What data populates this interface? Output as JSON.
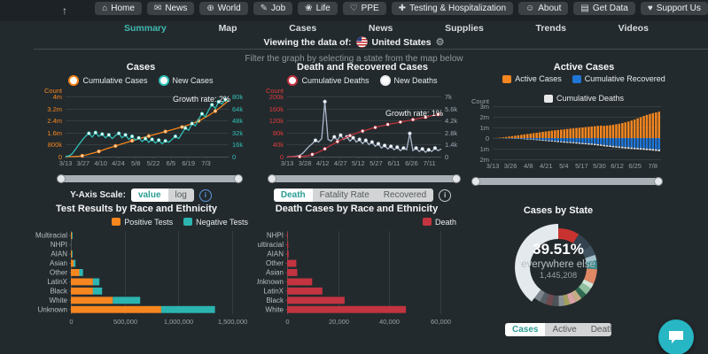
{
  "icons": {
    "scroll-top-icon": "↑",
    "gear-icon": "⚙",
    "home-icon": "⌂",
    "news-icon": "✉",
    "world-icon": "⊕",
    "job-icon": "✎",
    "life-icon": "❀",
    "ppe-icon": "♡",
    "testing-icon": "✚",
    "about-icon": "☺",
    "get-data-icon": "▤",
    "support-icon": "♥"
  },
  "header": {
    "nav_items": [
      {
        "icon": "home-icon",
        "label": "Home"
      },
      {
        "icon": "news-icon",
        "label": "News"
      },
      {
        "icon": "world-icon",
        "label": "World"
      },
      {
        "icon": "job-icon",
        "label": "Job"
      },
      {
        "icon": "life-icon",
        "label": "Life"
      },
      {
        "icon": "ppe-icon",
        "label": "PPE"
      },
      {
        "icon": "testing-icon",
        "label": "Testing & Hospitalization"
      },
      {
        "icon": "about-icon",
        "label": "About"
      },
      {
        "icon": "get-data-icon",
        "label": "Get Data"
      },
      {
        "icon": "support-icon",
        "label": "Support Us"
      }
    ],
    "subnav": {
      "items": [
        "Summary",
        "Map",
        "Cases",
        "News",
        "Supplies",
        "Trends",
        "Videos"
      ],
      "active": "Summary"
    },
    "viewing": {
      "prefix": "Viewing the data of:",
      "country": "United States"
    }
  },
  "filter_hint": "Filter the graph by selecting a state from the map below",
  "controls": {
    "y_axis_scale": {
      "label": "Y-Axis Scale:",
      "options": [
        "value",
        "log"
      ],
      "active": "value"
    },
    "death_tabs": {
      "options": [
        "Death",
        "Fatality Rate",
        "Recovered"
      ],
      "active": "Death"
    },
    "state_tabs": {
      "options": [
        "Cases",
        "Active",
        "Deaths"
      ],
      "active": "Cases"
    }
  },
  "colors": {
    "orange": "#f6861f",
    "teal": "#2fc0b8",
    "red_axis": "#e03b3b",
    "crimson": "#c0323e",
    "steel": "#aab8cc",
    "blue": "#2076d8",
    "white_series": "#e8e8e8",
    "bar_red": "#c23440",
    "grid": "#343d41",
    "axis_gray": "#9aa2a7",
    "accent": "#3fb8b0",
    "chat": "#27b6c4"
  },
  "chart_data": [
    {
      "type": "line",
      "title": "Cases",
      "legend": [
        {
          "label": "Cumulative Cases",
          "color": "#f6861f",
          "shape": "ring"
        },
        {
          "label": "New Cases",
          "color": "#2fc0b8",
          "shape": "ring"
        }
      ],
      "annotation": "Growth rate: 2%",
      "left_axis": {
        "title": "Count",
        "color": "#f6861f",
        "ticks": [
          "4m",
          "3.2m",
          "2.4m",
          "1.6m",
          "800k",
          "0"
        ],
        "max": 4000000
      },
      "right_axis": {
        "color": "#2fc0b8",
        "ticks": [
          "80k",
          "64k",
          "48k",
          "32k",
          "16k",
          "0"
        ],
        "max": 80000
      },
      "x_ticks": [
        "3/13",
        "3/27",
        "4/10",
        "4/24",
        "5/8",
        "5/22",
        "6/5",
        "6/19",
        "7/3"
      ],
      "x_layout": {
        "step": 14,
        "span": 130
      },
      "series": [
        {
          "name": "Cumulative Cases",
          "axis": "left",
          "color": "#f6861f",
          "dots": 5,
          "dot_fill": "#ffcf9e",
          "values": [
            0,
            1000,
            4000,
            10000,
            30000,
            60000,
            100000,
            160000,
            220000,
            280000,
            350000,
            420000,
            500000,
            570000,
            640000,
            710000,
            780000,
            850000,
            920000,
            990000,
            1060000,
            1120000,
            1190000,
            1250000,
            1310000,
            1370000,
            1430000,
            1490000,
            1550000,
            1610000,
            1670000,
            1730000,
            1790000,
            1850000,
            1910000,
            1970000,
            2040000,
            2110000,
            2190000,
            2280000,
            2380000,
            2490000,
            2610000,
            2740000,
            2880000,
            3030000,
            3190000,
            3360000,
            3540000,
            3730000
          ]
        },
        {
          "name": "New Cases",
          "axis": "right",
          "color": "#2fc0b8",
          "dots": "peaks",
          "dot_fill": "#ffffff",
          "values": [
            300,
            1000,
            4000,
            10000,
            16000,
            22000,
            27000,
            31000,
            26000,
            32000,
            27000,
            30000,
            25000,
            29000,
            24000,
            28000,
            31000,
            25000,
            29000,
            23000,
            27000,
            22000,
            25000,
            20000,
            24000,
            19000,
            23000,
            18000,
            22000,
            17000,
            21000,
            19000,
            23000,
            27000,
            24000,
            31000,
            38000,
            35000,
            44000,
            41000,
            50000,
            57000,
            53000,
            62000,
            69000,
            64000,
            73000,
            70000,
            76000,
            73000
          ]
        }
      ]
    },
    {
      "type": "line",
      "title": "Death and Recovered Cases",
      "legend": [
        {
          "label": "Cumulative Deaths",
          "color": "#c0323e",
          "shape": "ring"
        },
        {
          "label": "New Deaths",
          "color": "#e9edf0",
          "shape": "ring"
        }
      ],
      "annotation": "Growth rate: 1%",
      "left_axis": {
        "title": "Count",
        "color": "#e03b3b",
        "ticks": [
          "200k",
          "160k",
          "120k",
          "80k",
          "40k",
          "0"
        ],
        "max": 200000
      },
      "right_axis": {
        "color": "#9aa7b3",
        "ticks": [
          "7k",
          "5.6k",
          "4.2k",
          "2.8k",
          "1.4k",
          "0"
        ],
        "max": 7000
      },
      "x_ticks": [
        "3/13",
        "3/28",
        "4/12",
        "4/27",
        "5/12",
        "5/27",
        "6/11",
        "6/26",
        "7/11"
      ],
      "x_layout": {
        "step": 15,
        "span": 130
      },
      "series": [
        {
          "name": "New Deaths",
          "axis": "right",
          "color": "#aab8cc",
          "dots": "peaks",
          "dot_fill": "#ffffff",
          "values": [
            0,
            5,
            20,
            60,
            150,
            400,
            800,
            1200,
            1500,
            1900,
            1700,
            2100,
            6400,
            2000,
            1800,
            2300,
            1900,
            2500,
            2000,
            2300,
            1800,
            2200,
            1700,
            2000,
            1500,
            1900,
            1400,
            1700,
            1200,
            1500,
            1000,
            1300,
            900,
            1200,
            800,
            1100,
            700,
            1000,
            800,
            2700,
            700,
            1000,
            600,
            900,
            500,
            800,
            600,
            1000,
            700,
            900
          ]
        },
        {
          "name": "Cumulative Deaths",
          "axis": "left",
          "color": "#c0323e",
          "dots": 4,
          "dot_fill": "#ffffff",
          "values": [
            0,
            10,
            50,
            150,
            400,
            1000,
            2200,
            4500,
            7500,
            11000,
            15000,
            20000,
            26000,
            32000,
            38000,
            44000,
            50000,
            55000,
            60000,
            65000,
            70000,
            74000,
            78000,
            82000,
            85000,
            88000,
            91000,
            94000,
            97000,
            100000,
            102000,
            104000,
            107000,
            109000,
            111000,
            113000,
            115000,
            117000,
            119000,
            121000,
            123000,
            125000,
            127000,
            129000,
            131000,
            133000,
            136000,
            138000,
            140000,
            143000
          ]
        }
      ]
    },
    {
      "type": "diverging-bar",
      "title": "Active Cases",
      "legend": [
        {
          "label": "Active Cases",
          "color": "#f6861f",
          "shape": "square"
        },
        {
          "label": "Cumulative Recovered",
          "color": "#2076d8",
          "shape": "square"
        },
        {
          "label": "Cumulative Deaths",
          "color": "#e8e8e8",
          "shape": "square"
        }
      ],
      "left_axis": {
        "title": "Count",
        "color": "#9aa2a7",
        "ticks": [
          "3m",
          "2m",
          "1m",
          "0",
          "1m",
          "2m"
        ],
        "up_max": 3000000,
        "down_max": 2000000
      },
      "x_ticks": [
        "3/13",
        "3/26",
        "4/8",
        "4/21",
        "5/4",
        "5/17",
        "5/30",
        "6/12",
        "6/25",
        "7/8"
      ],
      "x_layout": {
        "step": 13,
        "span": 123
      },
      "series": [
        {
          "name": "Active Cases",
          "color": "#f6861f",
          "dir": "up",
          "values": [
            10000,
            20000,
            40000,
            70000,
            100000,
            140000,
            180000,
            220000,
            260000,
            300000,
            340000,
            380000,
            420000,
            460000,
            500000,
            540000,
            580000,
            620000,
            660000,
            700000,
            730000,
            760000,
            790000,
            820000,
            850000,
            880000,
            910000,
            940000,
            970000,
            1000000,
            1030000,
            1060000,
            1090000,
            1120000,
            1150000,
            1170000,
            1150000,
            1180000,
            1210000,
            1250000,
            1300000,
            1350000,
            1410000,
            1480000,
            1560000,
            1650000,
            1750000,
            1860000,
            1970000,
            2080000,
            2180000,
            2270000,
            2350000,
            2420000,
            2480000
          ]
        },
        {
          "name": "Cumulative Recovered",
          "color": "#2076d8",
          "dir": "down",
          "values": [
            0,
            0,
            5000,
            10000,
            15000,
            20000,
            30000,
            40000,
            50000,
            60000,
            70000,
            80000,
            100000,
            120000,
            140000,
            160000,
            180000,
            200000,
            220000,
            240000,
            270000,
            290000,
            310000,
            330000,
            350000,
            370000,
            390000,
            410000,
            440000,
            460000,
            480000,
            500000,
            520000,
            550000,
            580000,
            610000,
            650000,
            680000,
            710000,
            740000,
            770000,
            800000,
            820000,
            850000,
            870000,
            890000,
            910000,
            930000,
            950000,
            970000,
            990000,
            1010000,
            1040000,
            1070000,
            1100000
          ]
        },
        {
          "name": "Cumulative Deaths",
          "color": "#e8e8e8",
          "dir": "down",
          "values": [
            0,
            1000,
            2000,
            4000,
            7000,
            11000,
            16000,
            22000,
            28000,
            34000,
            40000,
            46000,
            52000,
            57000,
            62000,
            67000,
            72000,
            76000,
            80000,
            84000,
            87000,
            90000,
            93000,
            96000,
            99000,
            101000,
            103000,
            106000,
            108000,
            110000,
            112000,
            114000,
            116000,
            118000,
            119000,
            121000,
            122000,
            124000,
            125000,
            127000,
            128000,
            129000,
            131000,
            132000,
            133000,
            134000,
            136000,
            137000,
            138000,
            139000,
            140000,
            141000,
            142000,
            142000,
            143000
          ]
        }
      ]
    },
    {
      "type": "hbar-stacked",
      "title": "Test Results by Race and Ethnicity",
      "legend": [
        {
          "label": "Positive Tests",
          "color": "#f6861f",
          "shape": "square"
        },
        {
          "label": "Negative Tests",
          "color": "#2cb5b0",
          "shape": "square"
        }
      ],
      "categories": [
        "Multiracial",
        "NHPI",
        "AIAN",
        "Asian",
        "Other",
        "LatinX",
        "Black",
        "White",
        "Unknown"
      ],
      "x_ticks": [
        "0",
        "500,000",
        "1,000,000",
        "1,500,000"
      ],
      "max": 1500000,
      "series": [
        {
          "name": "Positive Tests",
          "color": "#f6861f",
          "values": [
            8000,
            2000,
            9000,
            25000,
            78000,
            205000,
            205000,
            390000,
            840000
          ]
        },
        {
          "name": "Negative Tests",
          "color": "#2cb5b0",
          "values": [
            4000,
            1500,
            5000,
            18000,
            35000,
            60000,
            85000,
            255000,
            500000
          ]
        }
      ]
    },
    {
      "type": "hbar",
      "title": "Death Cases by Race and Ethnicity",
      "legend": [
        {
          "label": "Death",
          "color": "#c23440",
          "shape": "square"
        }
      ],
      "categories": [
        "NHPI",
        "Multiracial",
        "AIAN",
        "Other",
        "Asian",
        "Unknown",
        "LatinX",
        "Black",
        "White"
      ],
      "x_ticks": [
        "0",
        "20,000",
        "40,000",
        "60,000"
      ],
      "max": 60000,
      "series": [
        {
          "name": "Death",
          "color": "#c23440",
          "values": [
            150,
            450,
            600,
            3600,
            4000,
            9800,
            13800,
            22500,
            46500
          ]
        }
      ]
    },
    {
      "type": "donut",
      "title": "Cases by State",
      "center": {
        "pct": "39.51%",
        "label": "everywhere else",
        "value": "1,445,208"
      },
      "slices": [
        {
          "pct": 8.8,
          "color": "#c9332f"
        },
        {
          "pct": 6.8,
          "color": "#33424e"
        },
        {
          "pct": 4.2,
          "color": "#40525f"
        },
        {
          "pct": 2.4,
          "color": "#a6c3ce"
        },
        {
          "pct": 3.6,
          "color": "#3d8a8c"
        },
        {
          "pct": 6.2,
          "color": "#e08766"
        },
        {
          "pct": 2.2,
          "color": "#d4e6d8"
        },
        {
          "pct": 3.1,
          "color": "#8fbf9f"
        },
        {
          "pct": 2.5,
          "color": "#2f6b52"
        },
        {
          "pct": 2.6,
          "color": "#c4ad85"
        },
        {
          "pct": 2.7,
          "color": "#d8a2a6"
        },
        {
          "pct": 2.3,
          "color": "#a3a05e"
        },
        {
          "pct": 2.4,
          "color": "#8d9499"
        },
        {
          "pct": 2.7,
          "color": "#4b5358"
        },
        {
          "pct": 2.7,
          "color": "#6e4a4e"
        },
        {
          "pct": 2.6,
          "color": "#575f66"
        },
        {
          "pct": 2.69,
          "color": "#7c858c"
        },
        {
          "pct": 39.51,
          "color": "#e3e9ec",
          "name": "everywhere else",
          "highlight": true
        }
      ]
    }
  ]
}
